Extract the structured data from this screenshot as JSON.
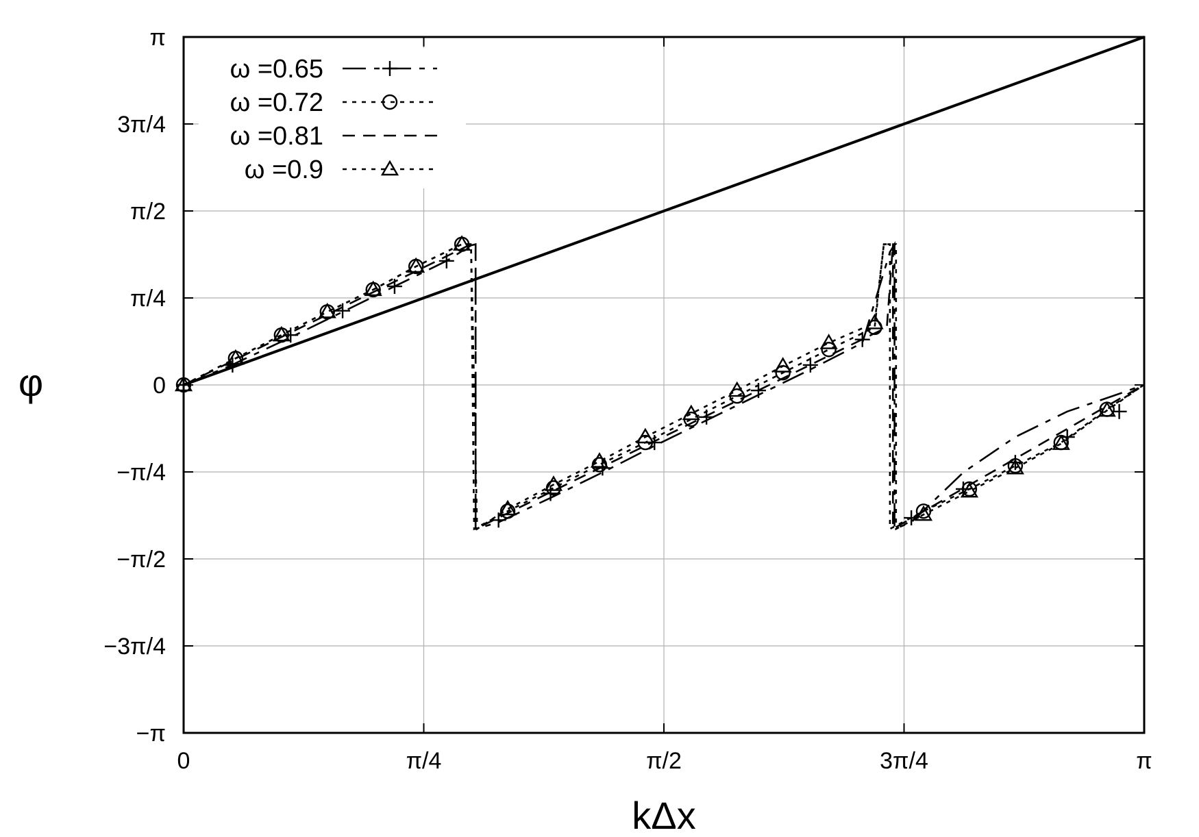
{
  "chart_data": {
    "type": "line",
    "xlabel": "kΔx",
    "ylabel": "φ",
    "xlim": [
      0,
      3.14159265
    ],
    "ylim": [
      -3.14159265,
      3.14159265
    ],
    "grid": true,
    "legend_position": "top-left",
    "x_ticks": [
      {
        "value": 0,
        "label": "0"
      },
      {
        "value": 0.785398,
        "label": "π/4"
      },
      {
        "value": 1.570796,
        "label": "π/2"
      },
      {
        "value": 2.356194,
        "label": "3π/4"
      },
      {
        "value": 3.141593,
        "label": "π"
      }
    ],
    "y_ticks": [
      {
        "value": 3.141593,
        "label": "π"
      },
      {
        "value": 2.356194,
        "label": "3π/4"
      },
      {
        "value": 1.570796,
        "label": "π/2"
      },
      {
        "value": 0.785398,
        "label": "π/4"
      },
      {
        "value": 0,
        "label": "0"
      },
      {
        "value": -0.785398,
        "label": "−π/4"
      },
      {
        "value": -1.570796,
        "label": "−π/2"
      },
      {
        "value": -2.356194,
        "label": "−3π/4"
      },
      {
        "value": -3.141593,
        "label": "−π"
      }
    ],
    "reference_line": {
      "x": [
        0,
        3.141593
      ],
      "y": [
        0,
        3.141593
      ]
    },
    "series": [
      {
        "name": "ω =0.65",
        "dash": "34,12,8,12",
        "marker": "plus",
        "x": [
          0,
          0.15,
          0.35,
          0.52,
          0.69,
          0.86,
          0.94,
          0.955,
          0.955,
          1.03,
          1.2,
          1.37,
          1.54,
          1.71,
          1.88,
          2.05,
          2.22,
          2.31,
          2.325,
          2.325,
          2.38,
          2.55,
          2.72,
          2.89,
          3.06,
          3.14
        ],
        "y": [
          0,
          0.17,
          0.43,
          0.66,
          0.89,
          1.12,
          1.26,
          1.27,
          -1.3,
          -1.24,
          -1.02,
          -0.79,
          -0.55,
          -0.32,
          -0.09,
          0.14,
          0.38,
          1.2,
          1.27,
          -1.3,
          -1.24,
          -0.79,
          -0.47,
          -0.24,
          -0.08,
          0
        ],
        "marker_x": [
          0,
          0.16,
          0.35,
          0.52,
          0.69,
          0.86,
          1.03,
          1.2,
          1.37,
          1.54,
          1.71,
          1.88,
          2.05,
          2.22,
          2.38,
          2.55,
          2.72,
          2.89,
          3.06
        ],
        "marker_y": [
          0,
          0.18,
          0.45,
          0.67,
          0.89,
          1.12,
          -1.22,
          -0.98,
          -0.75,
          -0.52,
          -0.29,
          -0.05,
          0.18,
          0.41,
          -1.2,
          -0.94,
          -0.7,
          -0.47,
          -0.24
        ]
      },
      {
        "name": "ω =0.72",
        "dash": "6,8",
        "marker": "circle",
        "x": [
          0,
          0.17,
          0.32,
          0.47,
          0.62,
          0.76,
          0.91,
          0.94,
          0.95,
          0.95,
          1.06,
          1.21,
          1.36,
          1.51,
          1.66,
          1.81,
          1.96,
          2.11,
          2.26,
          2.29,
          2.31,
          2.31,
          2.42,
          2.57,
          2.72,
          2.87,
          3.02,
          3.14
        ],
        "y": [
          0,
          0.24,
          0.45,
          0.66,
          0.86,
          1.07,
          1.27,
          1.27,
          -1.3,
          -1.3,
          -1.14,
          -0.93,
          -0.72,
          -0.52,
          -0.31,
          -0.1,
          0.11,
          0.32,
          0.52,
          1.27,
          1.27,
          -1.3,
          -1.14,
          -0.94,
          -0.73,
          -0.52,
          -0.22,
          0
        ],
        "marker_x": [
          0,
          0.17,
          0.32,
          0.47,
          0.62,
          0.76,
          0.91,
          1.06,
          1.21,
          1.36,
          1.51,
          1.66,
          1.81,
          1.96,
          2.11,
          2.26,
          2.42,
          2.57,
          2.72,
          2.87,
          3.02
        ],
        "marker_y": [
          0,
          0.24,
          0.45,
          0.66,
          0.86,
          1.07,
          1.27,
          -1.14,
          -0.93,
          -0.72,
          -0.52,
          -0.31,
          -0.1,
          0.11,
          0.32,
          0.52,
          -1.14,
          -0.94,
          -0.73,
          -0.52,
          -0.22
        ]
      },
      {
        "name": "ω =0.81",
        "dash": "18,12",
        "marker": "none",
        "x": [
          0,
          0.94,
          0.955,
          0.955,
          2.3,
          2.32,
          2.32,
          3.14
        ],
        "y": [
          0,
          1.27,
          1.27,
          -1.3,
          0.52,
          1.27,
          -1.3,
          0
        ]
      },
      {
        "name": "ω =0.9",
        "dash": "6,8",
        "marker": "triangle",
        "x": [
          0,
          0.17,
          0.32,
          0.47,
          0.62,
          0.76,
          0.91,
          0.94,
          0.96,
          0.96,
          1.06,
          1.21,
          1.36,
          1.51,
          1.66,
          1.81,
          1.96,
          2.11,
          2.26,
          2.29,
          2.33,
          2.33,
          2.42,
          2.57,
          2.72,
          2.87,
          3.02,
          3.14
        ],
        "y": [
          0,
          0.24,
          0.45,
          0.66,
          0.86,
          1.07,
          1.27,
          1.27,
          -1.3,
          -1.3,
          -1.12,
          -0.9,
          -0.69,
          -0.47,
          -0.26,
          -0.05,
          0.17,
          0.38,
          0.56,
          1.27,
          1.27,
          -1.3,
          -1.17,
          -0.96,
          -0.75,
          -0.53,
          -0.23,
          0
        ],
        "marker_x": [
          0,
          0.17,
          0.32,
          0.47,
          0.62,
          0.76,
          0.91,
          1.06,
          1.21,
          1.36,
          1.51,
          1.66,
          1.81,
          1.96,
          2.11,
          2.26,
          2.42,
          2.57,
          2.72,
          2.87,
          3.02
        ],
        "marker_y": [
          0,
          0.24,
          0.45,
          0.66,
          0.86,
          1.07,
          1.27,
          -1.12,
          -0.9,
          -0.69,
          -0.47,
          -0.26,
          -0.05,
          0.17,
          0.38,
          0.56,
          -1.17,
          -0.96,
          -0.75,
          -0.53,
          -0.23
        ]
      }
    ]
  }
}
